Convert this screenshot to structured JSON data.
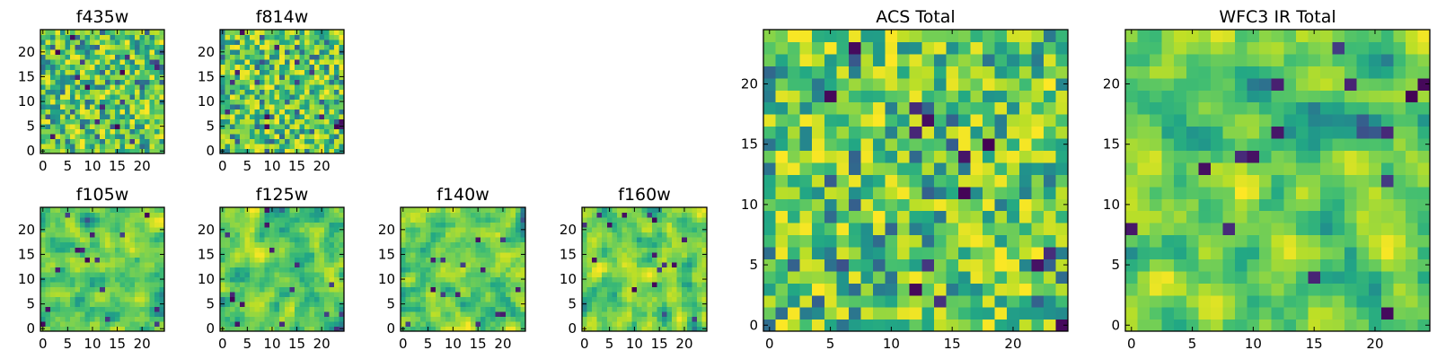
{
  "chart_data": [
    {
      "type": "heatmap",
      "title": "f435w",
      "grid_size": 25,
      "xlim": [
        0,
        24
      ],
      "ylim": [
        0,
        24
      ],
      "xticks": [
        0,
        5,
        10,
        15,
        20
      ],
      "yticks": [
        0,
        5,
        10,
        15,
        20
      ],
      "colormap": "viridis",
      "texture_seed": 11,
      "smoothness": 0
    },
    {
      "type": "heatmap",
      "title": "f814w",
      "grid_size": 25,
      "xlim": [
        0,
        24
      ],
      "ylim": [
        0,
        24
      ],
      "xticks": [
        0,
        5,
        10,
        15,
        20
      ],
      "yticks": [
        0,
        5,
        10,
        15,
        20
      ],
      "colormap": "viridis",
      "texture_seed": 23,
      "smoothness": 0
    },
    {
      "type": "heatmap",
      "title": "f105w",
      "grid_size": 25,
      "xlim": [
        0,
        24
      ],
      "ylim": [
        0,
        24
      ],
      "xticks": [
        0,
        5,
        10,
        15,
        20
      ],
      "yticks": [
        0,
        5,
        10,
        15,
        20
      ],
      "colormap": "viridis",
      "texture_seed": 37,
      "smoothness": 1
    },
    {
      "type": "heatmap",
      "title": "f125w",
      "grid_size": 25,
      "xlim": [
        0,
        24
      ],
      "ylim": [
        0,
        24
      ],
      "xticks": [
        0,
        5,
        10,
        15,
        20
      ],
      "yticks": [
        0,
        5,
        10,
        15,
        20
      ],
      "colormap": "viridis",
      "texture_seed": 41,
      "smoothness": 1
    },
    {
      "type": "heatmap",
      "title": "f140w",
      "grid_size": 25,
      "xlim": [
        0,
        24
      ],
      "ylim": [
        0,
        24
      ],
      "xticks": [
        0,
        5,
        10,
        15,
        20
      ],
      "yticks": [
        0,
        5,
        10,
        15,
        20
      ],
      "colormap": "viridis",
      "texture_seed": 53,
      "smoothness": 1
    },
    {
      "type": "heatmap",
      "title": "f160w",
      "grid_size": 25,
      "xlim": [
        0,
        24
      ],
      "ylim": [
        0,
        24
      ],
      "xticks": [
        0,
        5,
        10,
        15,
        20
      ],
      "yticks": [
        0,
        5,
        10,
        15,
        20
      ],
      "colormap": "viridis",
      "texture_seed": 67,
      "smoothness": 1
    },
    {
      "type": "heatmap",
      "title": "ACS Total",
      "grid_size": 25,
      "xlim": [
        0,
        24
      ],
      "ylim": [
        0,
        24
      ],
      "xticks": [
        0,
        5,
        10,
        15,
        20
      ],
      "yticks": [
        0,
        5,
        10,
        15,
        20
      ],
      "colormap": "viridis",
      "texture_seed": 79,
      "smoothness": 0
    },
    {
      "type": "heatmap",
      "title": "WFC3 IR Total",
      "grid_size": 25,
      "xlim": [
        0,
        24
      ],
      "ylim": [
        0,
        24
      ],
      "xticks": [
        0,
        5,
        10,
        15,
        20
      ],
      "yticks": [
        0,
        5,
        10,
        15,
        20
      ],
      "colormap": "viridis",
      "texture_seed": 97,
      "smoothness": 1
    }
  ]
}
